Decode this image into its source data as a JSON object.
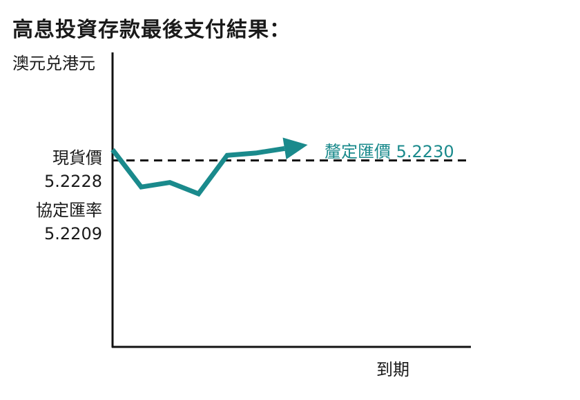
{
  "chart_data": {
    "type": "line",
    "title": "高息投資存款最後支付結果：",
    "ylabel": "澳元兑港元",
    "xlabel": "到期",
    "ylim": [
      5.1,
      5.25
    ],
    "colors": {
      "line": "#1a8a8c",
      "axis": "#111111",
      "strike_line": "#111111"
    },
    "labels": {
      "spot_name": "現貨價",
      "spot_value": "5.2228",
      "strike_name": "協定匯率",
      "strike_value": "5.2209",
      "final_text": "釐定匯價 5.2230"
    },
    "series": [
      {
        "x": [
          0,
          1,
          2,
          3,
          4,
          5,
          6
        ],
        "values": [
          5.2228,
          5.2162,
          5.217,
          5.215,
          5.2218,
          5.2222,
          5.223
        ]
      }
    ],
    "strike": 5.2209,
    "grid": false
  }
}
